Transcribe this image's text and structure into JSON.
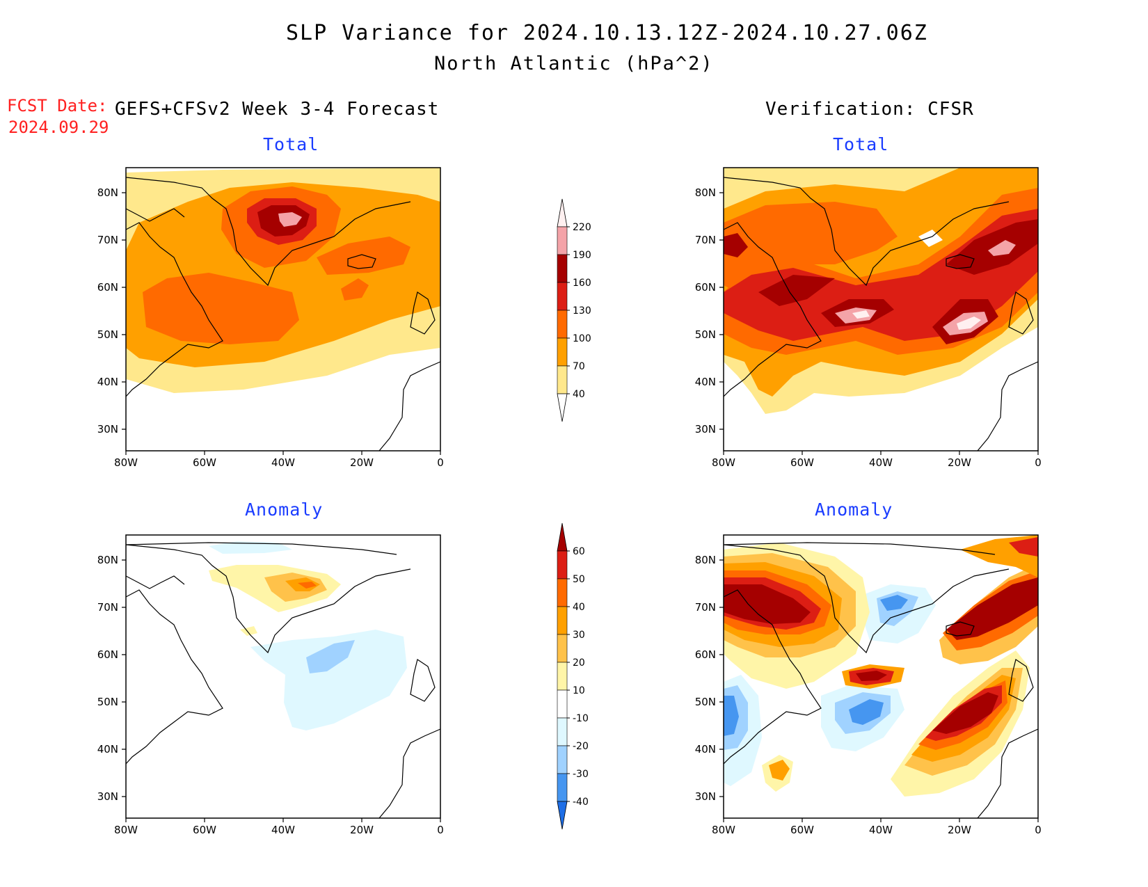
{
  "header": {
    "title": "SLP Variance for 2024.10.13.12Z-2024.10.27.06Z",
    "subtitle": "North Atlantic (hPa^2)"
  },
  "forecast_date": {
    "label": "FCST Date:",
    "value": "2024.09.29"
  },
  "columns": {
    "left": "GEFS+CFSv2 Week 3-4 Forecast",
    "right": "Verification: CFSR"
  },
  "panels": {
    "total_title": "Total",
    "anomaly_title": "Anomaly"
  },
  "axes": {
    "lat_labels": [
      "80N",
      "70N",
      "60N",
      "50N",
      "40N",
      "30N"
    ],
    "lon_labels": [
      "80W",
      "60W",
      "40W",
      "20W",
      "0"
    ]
  },
  "colorbars": {
    "total": {
      "levels": [
        "220",
        "190",
        "160",
        "130",
        "100",
        "70",
        "40"
      ],
      "colors": [
        "#fff0f0",
        "#f4a3a8",
        "#a50000",
        "#dc1e14",
        "#ff6a00",
        "#ffa000",
        "#ffe88c"
      ]
    },
    "anomaly": {
      "levels": [
        "60",
        "50",
        "40",
        "30",
        "20",
        "10",
        "-10",
        "-20",
        "-30",
        "-40"
      ],
      "colors": [
        "#a50000",
        "#dc1e14",
        "#ff6a00",
        "#ffa000",
        "#ffc24a",
        "#fff5a8",
        "#ffffff",
        "#dff8ff",
        "#a0d2ff",
        "#4696f0",
        "#1e6ee6"
      ]
    }
  },
  "colors": {
    "title_text": "#000000",
    "forecast_date_text": "#ff2020",
    "panel_title_text": "#1a3cff"
  }
}
